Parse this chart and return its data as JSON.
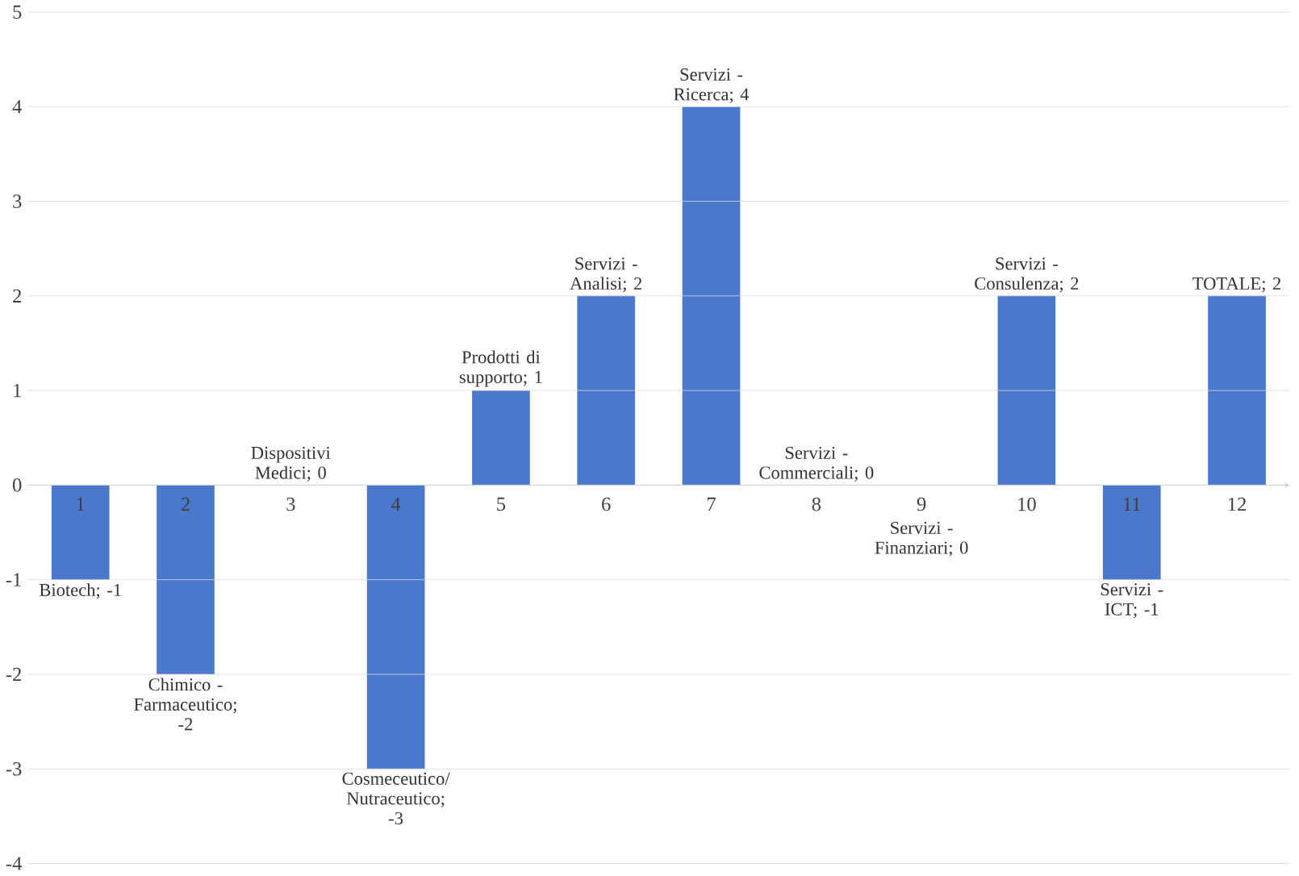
{
  "chart_data": {
    "type": "bar",
    "categories": [
      "1",
      "2",
      "3",
      "4",
      "5",
      "6",
      "7",
      "8",
      "9",
      "10",
      "11",
      "12"
    ],
    "values": [
      -1,
      -2,
      0,
      -3,
      1,
      2,
      4,
      0,
      0,
      2,
      -1,
      2
    ],
    "value_labels": [
      "Biotech; -1",
      "Chimico - Farmaceutico; -2",
      "Dispositivi Medici; 0",
      "Cosmeceutico/Nutraceutico; -3",
      "Prodotti di supporto; 1",
      "Servizi - Analisi; 2",
      "Servizi - Ricerca; 4",
      "Servizi - Commerciali; 0",
      "Servizi - Finanziari; 0",
      "Servizi - Consulenza; 2",
      "Servizi - ICT; -1",
      "TOTALE; 2"
    ],
    "color": "#4a78cc",
    "ylim": [
      -4,
      5
    ],
    "yticks": [
      -4,
      -3,
      -2,
      -1,
      0,
      1,
      2,
      3,
      4,
      5
    ],
    "grid": "y"
  }
}
